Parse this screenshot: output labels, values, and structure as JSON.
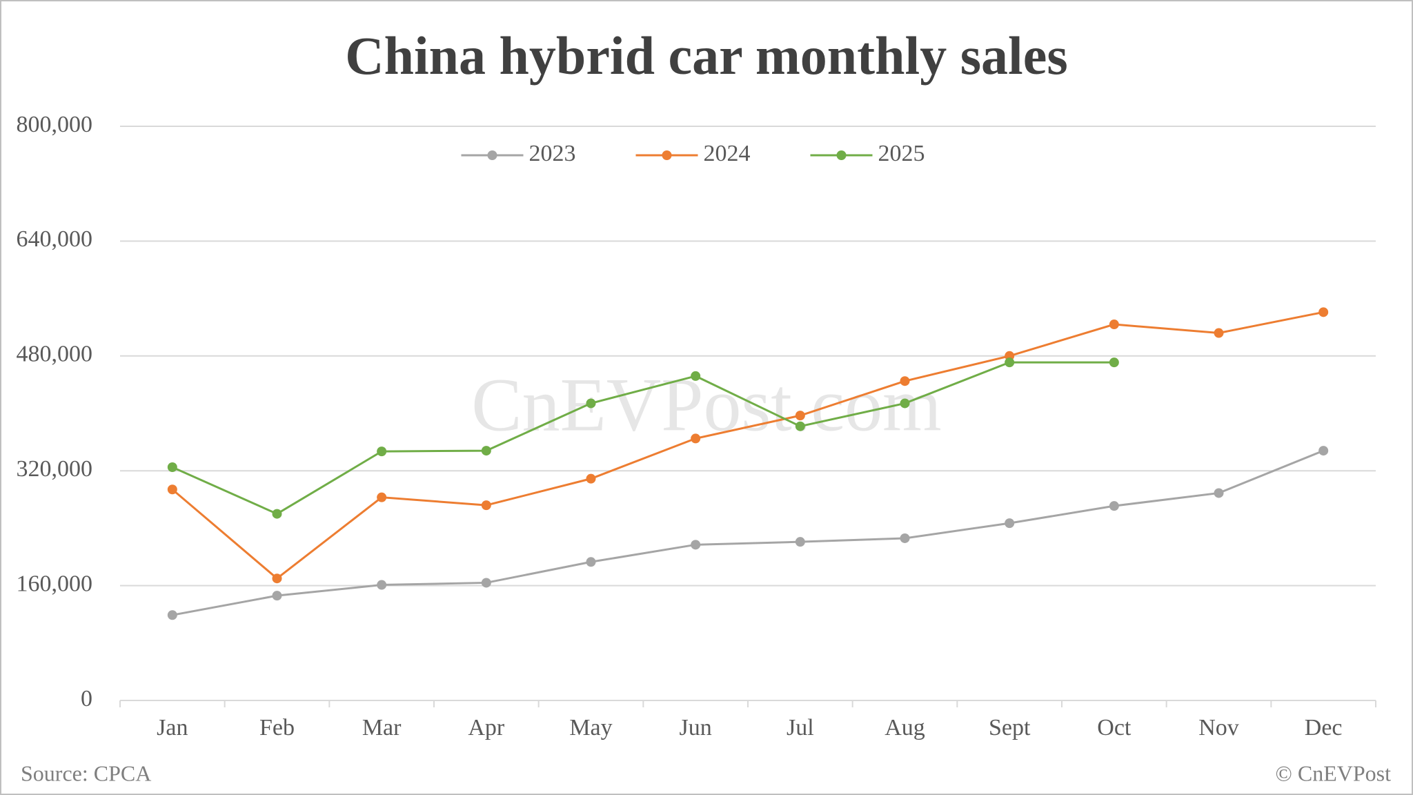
{
  "chart_data": {
    "type": "line",
    "title": "China hybrid car monthly sales",
    "source": "Source: CPCA",
    "credit": "© CnEVPost",
    "watermark": "CnEVPost.com",
    "categories": [
      "Jan",
      "Feb",
      "Mar",
      "Apr",
      "May",
      "Jun",
      "Jul",
      "Aug",
      "Sept",
      "Oct",
      "Nov",
      "Dec"
    ],
    "series": [
      {
        "name": "2023",
        "color": "#a5a5a5",
        "values": [
          119000,
          146000,
          161000,
          164000,
          193000,
          217000,
          221000,
          226000,
          247000,
          271000,
          289000,
          348000
        ]
      },
      {
        "name": "2024",
        "color": "#ed7d31",
        "values": [
          294000,
          170000,
          283000,
          272000,
          309000,
          365000,
          397000,
          445000,
          480000,
          524000,
          512000,
          541000
        ]
      },
      {
        "name": "2025",
        "color": "#70ad47",
        "values": [
          325000,
          260000,
          347000,
          348000,
          414000,
          452000,
          382000,
          414000,
          471000,
          471000,
          null,
          null
        ]
      }
    ],
    "ylim": [
      0,
      800000
    ],
    "yticks": [
      0,
      {
        "value": 160000,
        "label": "160,000"
      },
      {
        "value": 320000,
        "label": "320,000"
      },
      {
        "value": 480000,
        "label": "480,000"
      },
      {
        "value": 640000,
        "label": "640,000"
      },
      {
        "value": 800000,
        "label": "800,000"
      }
    ],
    "grid": true,
    "legend": "top"
  }
}
